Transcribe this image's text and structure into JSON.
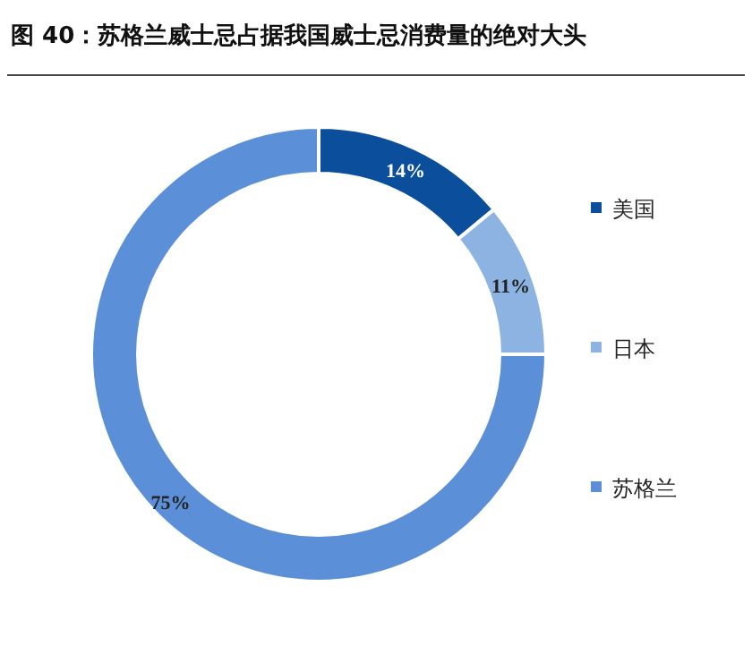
{
  "chart_data": {
    "type": "donut",
    "title": "图 40：苏格兰威士忌占据我国威士忌消费量的绝对大头",
    "categories": [
      "美国",
      "日本",
      "苏格兰"
    ],
    "values": [
      14,
      11,
      75
    ],
    "colors": [
      "#0b4f9c",
      "#8db3e2",
      "#5b8fd8"
    ],
    "value_labels": [
      "14%",
      "11%",
      "75%"
    ],
    "legend": "right"
  }
}
